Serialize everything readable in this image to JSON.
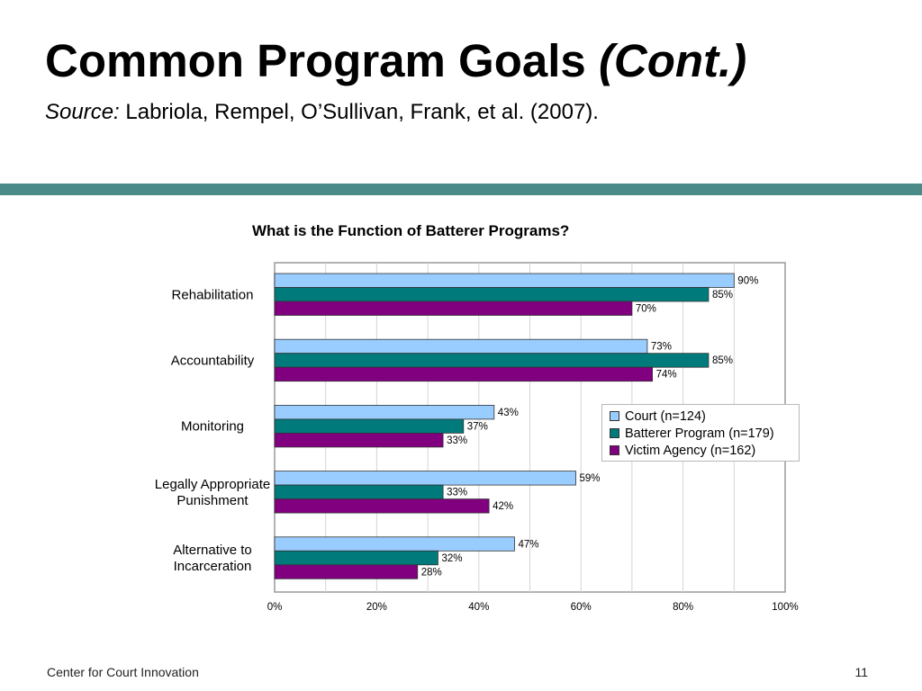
{
  "slide": {
    "title_main": "Common Program Goals",
    "title_cont": "(Cont.)",
    "source_label": "Source:",
    "source_text": "Labriola, Rempel, O’Sullivan, Frank, et al. (2007).",
    "footer": "Center for Court Innovation",
    "page_number": "11",
    "accent_color": "#4a8a89"
  },
  "chart_data": {
    "type": "bar",
    "orientation": "horizontal",
    "title": "What is the Function of Batterer Programs?",
    "categories": [
      [
        "Rehabilitation"
      ],
      [
        "Accountability"
      ],
      [
        "Monitoring"
      ],
      [
        "Legally Appropriate",
        "Punishment"
      ],
      [
        "Alternative to",
        "Incarceration"
      ]
    ],
    "series": [
      {
        "name": "Court (n=124)",
        "color": "#99ccff",
        "values": [
          90,
          73,
          43,
          59,
          47
        ]
      },
      {
        "name": "Batterer Program (n=179)",
        "color": "#007a7a",
        "values": [
          85,
          85,
          37,
          33,
          32
        ]
      },
      {
        "name": "Victim Agency (n=162)",
        "color": "#800080",
        "values": [
          70,
          74,
          33,
          42,
          28
        ]
      }
    ],
    "xlim": [
      0,
      100
    ],
    "xticks": [
      "0%",
      "20%",
      "40%",
      "60%",
      "80%",
      "100%"
    ],
    "value_suffix": "%",
    "grid": true,
    "legend_position": "right"
  }
}
